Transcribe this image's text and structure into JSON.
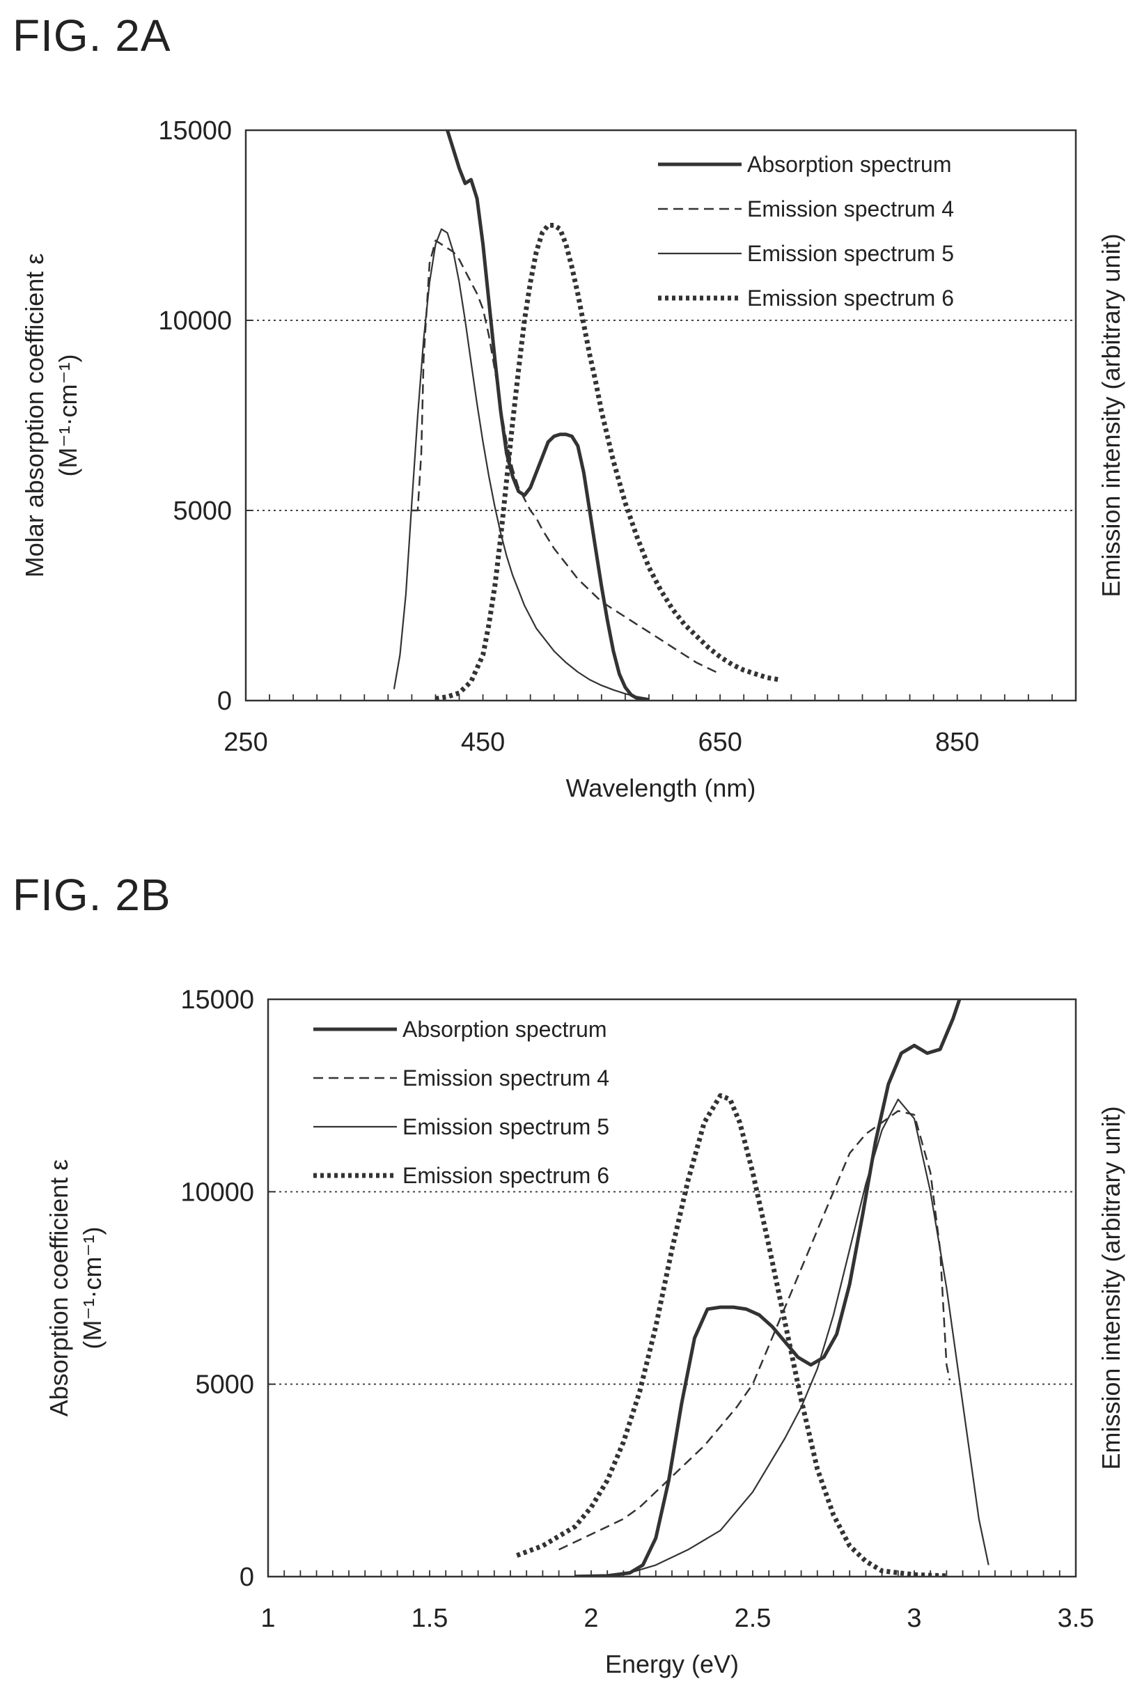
{
  "figures": [
    {
      "title": "FIG. 2A"
    },
    {
      "title": "FIG. 2B"
    }
  ],
  "chart_data": [
    {
      "type": "line",
      "title": "FIG. 2A",
      "xlabel": "Wavelength (nm)",
      "ylabel": "Molar absorption coefficient ε",
      "ylabel_unit": "(M⁻¹·cm⁻¹)",
      "y2label": "Emission intensity (arbitrary unit)",
      "xlim": [
        250,
        950
      ],
      "ylim": [
        0,
        15000
      ],
      "xticks": [
        250,
        450,
        650,
        850
      ],
      "yticks": [
        0,
        5000,
        10000,
        15000
      ],
      "grid_y": [
        5000,
        10000
      ],
      "legend": "top-right",
      "series": [
        {
          "name": "Absorption spectrum",
          "style": "thick-solid",
          "x": [
            420,
            425,
            430,
            435,
            440,
            445,
            450,
            455,
            460,
            465,
            470,
            475,
            480,
            485,
            490,
            495,
            500,
            505,
            510,
            515,
            520,
            525,
            530,
            535,
            540,
            545,
            550,
            555,
            560,
            565,
            570,
            575,
            580,
            585,
            590
          ],
          "y": [
            15000,
            14500,
            14000,
            13600,
            13700,
            13200,
            12000,
            10500,
            9000,
            7600,
            6500,
            5900,
            5500,
            5400,
            5600,
            6000,
            6400,
            6800,
            6950,
            7000,
            7000,
            6950,
            6700,
            6000,
            5000,
            4000,
            3000,
            2100,
            1300,
            700,
            350,
            150,
            60,
            20,
            5
          ]
        },
        {
          "name": "Emission spectrum 4",
          "style": "dashed",
          "x": [
            390,
            392,
            395,
            398,
            400,
            405,
            410,
            415,
            420,
            425,
            430,
            435,
            440,
            445,
            450,
            455,
            460,
            465,
            470,
            475,
            480,
            485,
            490,
            495,
            500,
            510,
            520,
            530,
            540,
            550,
            560,
            570,
            580,
            590,
            600,
            610,
            620,
            630,
            640,
            650
          ],
          "y": [
            5000,
            5000,
            5000,
            6500,
            9000,
            11500,
            12100,
            12000,
            11900,
            11800,
            11600,
            11300,
            11000,
            10700,
            10300,
            9600,
            8700,
            7700,
            6800,
            6100,
            5600,
            5300,
            5000,
            4800,
            4500,
            4000,
            3600,
            3200,
            2900,
            2600,
            2400,
            2200,
            2000,
            1800,
            1600,
            1400,
            1200,
            1000,
            850,
            700
          ]
        },
        {
          "name": "Emission spectrum 5",
          "style": "thin-solid",
          "x": [
            375,
            380,
            385,
            390,
            395,
            400,
            405,
            410,
            415,
            420,
            425,
            430,
            435,
            440,
            445,
            450,
            455,
            460,
            465,
            470,
            475,
            480,
            485,
            490,
            495,
            500,
            510,
            520,
            530,
            540,
            550,
            560,
            570,
            580,
            590
          ],
          "y": [
            300,
            1200,
            2800,
            5200,
            7500,
            9500,
            11000,
            12000,
            12400,
            12300,
            11800,
            11000,
            10000,
            8900,
            7800,
            6800,
            5900,
            5100,
            4400,
            3800,
            3300,
            2900,
            2500,
            2200,
            1900,
            1700,
            1300,
            1000,
            750,
            550,
            400,
            280,
            180,
            100,
            50
          ]
        },
        {
          "name": "Emission spectrum 6",
          "style": "dotted-thick",
          "x": [
            410,
            420,
            430,
            440,
            450,
            455,
            460,
            465,
            470,
            475,
            480,
            485,
            490,
            495,
            500,
            505,
            510,
            515,
            520,
            525,
            530,
            535,
            540,
            545,
            550,
            560,
            570,
            580,
            590,
            600,
            610,
            620,
            630,
            640,
            650,
            660,
            670,
            680,
            690,
            700
          ],
          "y": [
            50,
            100,
            200,
            500,
            1200,
            2000,
            3000,
            4300,
            5800,
            7300,
            8700,
            10000,
            11000,
            11800,
            12300,
            12500,
            12500,
            12400,
            12000,
            11400,
            10700,
            9900,
            9100,
            8400,
            7600,
            6300,
            5200,
            4300,
            3500,
            2900,
            2400,
            2000,
            1700,
            1400,
            1150,
            950,
            800,
            700,
            600,
            550
          ]
        }
      ]
    },
    {
      "type": "line",
      "title": "FIG. 2B",
      "xlabel": "Energy (eV)",
      "ylabel": "Absorption coefficient ε",
      "ylabel_unit": "(M⁻¹·cm⁻¹)",
      "y2label": "Emission intensity (arbitrary unit)",
      "xlim": [
        1,
        3.5
      ],
      "ylim": [
        0,
        15000
      ],
      "xticks": [
        1,
        1.5,
        2,
        2.5,
        3,
        3.5
      ],
      "yticks": [
        0,
        5000,
        10000,
        15000
      ],
      "grid_y": [
        5000,
        10000
      ],
      "legend": "top-left",
      "series": [
        {
          "name": "Absorption spectrum",
          "style": "thick-solid",
          "x": [
            1.95,
            2.05,
            2.12,
            2.16,
            2.2,
            2.24,
            2.28,
            2.32,
            2.36,
            2.4,
            2.44,
            2.48,
            2.52,
            2.56,
            2.6,
            2.64,
            2.68,
            2.72,
            2.76,
            2.8,
            2.84,
            2.88,
            2.92,
            2.96,
            3.0,
            3.04,
            3.08,
            3.12,
            3.14
          ],
          "y": [
            5,
            20,
            100,
            300,
            1000,
            2500,
            4500,
            6200,
            6950,
            7000,
            7000,
            6950,
            6800,
            6500,
            6100,
            5700,
            5500,
            5700,
            6300,
            7600,
            9400,
            11300,
            12800,
            13600,
            13800,
            13600,
            13700,
            14500,
            15000
          ]
        },
        {
          "name": "Emission spectrum 4",
          "style": "dashed",
          "x": [
            1.9,
            1.95,
            2.0,
            2.05,
            2.1,
            2.15,
            2.2,
            2.25,
            2.3,
            2.35,
            2.4,
            2.45,
            2.5,
            2.55,
            2.6,
            2.65,
            2.7,
            2.75,
            2.8,
            2.85,
            2.9,
            2.95,
            3.0,
            3.05,
            3.08,
            3.1,
            3.11
          ],
          "y": [
            700,
            900,
            1100,
            1300,
            1500,
            1800,
            2200,
            2600,
            3000,
            3400,
            3900,
            4400,
            5000,
            6000,
            7000,
            8000,
            9000,
            10000,
            11000,
            11500,
            11800,
            12100,
            12000,
            10500,
            8500,
            5500,
            5100
          ]
        },
        {
          "name": "Emission spectrum 5",
          "style": "thin-solid",
          "x": [
            2.1,
            2.2,
            2.3,
            2.4,
            2.5,
            2.6,
            2.65,
            2.7,
            2.75,
            2.8,
            2.85,
            2.9,
            2.95,
            3.0,
            3.05,
            3.1,
            3.15,
            3.2,
            3.23
          ],
          "y": [
            50,
            300,
            700,
            1200,
            2200,
            3600,
            4400,
            5400,
            6800,
            8500,
            10200,
            11600,
            12400,
            11900,
            10000,
            7500,
            4500,
            1500,
            300
          ]
        },
        {
          "name": "Emission spectrum 6",
          "style": "dotted-thick",
          "x": [
            1.77,
            1.85,
            1.95,
            2.0,
            2.05,
            2.1,
            2.15,
            2.2,
            2.25,
            2.3,
            2.35,
            2.4,
            2.43,
            2.46,
            2.5,
            2.55,
            2.6,
            2.65,
            2.7,
            2.75,
            2.8,
            2.85,
            2.9,
            3.0,
            3.1
          ],
          "y": [
            550,
            800,
            1300,
            1800,
            2500,
            3500,
            4800,
            6500,
            8500,
            10300,
            11800,
            12500,
            12400,
            11800,
            10500,
            8600,
            6600,
            4600,
            2800,
            1600,
            800,
            400,
            150,
            50,
            20
          ]
        }
      ]
    }
  ]
}
